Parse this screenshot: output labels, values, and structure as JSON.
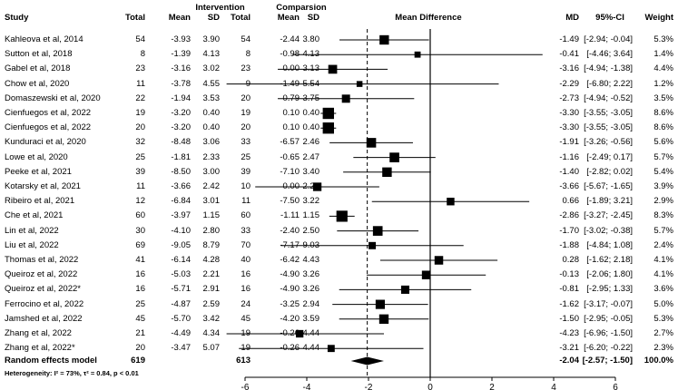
{
  "headers": {
    "study": "Study",
    "group1": "Intervention",
    "group2": "Comparsion",
    "total1": "Total",
    "mean1": "Mean",
    "sd1": "SD",
    "total2": "Total",
    "mean2": "Mean",
    "sd2": "SD",
    "plot": "Mean Difference",
    "md": "MD",
    "ci": "95%-CI",
    "weight": "Weight"
  },
  "studies": [
    {
      "study": "Kahleova et al, 2014",
      "n1": "54",
      "mean1": "-3.93",
      "sd1": "3.90",
      "n2": "54",
      "mean2": "-2.44",
      "sd2": "3.80",
      "md": "-1.49",
      "ci": "[-2.94; -0.04]",
      "weight": "5.3%"
    },
    {
      "study": "Sutton et al, 2018",
      "n1": "8",
      "mean1": "-1.39",
      "sd1": "4.13",
      "n2": "8",
      "mean2": "-0.98",
      "sd2": "4.13",
      "md": "-0.41",
      "ci": "[-4.46; 3.64]",
      "weight": "1.4%"
    },
    {
      "study": "Gabel et al, 2018",
      "n1": "23",
      "mean1": "-3.16",
      "sd1": "3.02",
      "n2": "23",
      "mean2": "0.00",
      "sd2": "3.13",
      "md": "-3.16",
      "ci": "[-4.94; -1.38]",
      "weight": "4.4%"
    },
    {
      "study": "Chow et al, 2020",
      "n1": "11",
      "mean1": "-3.78",
      "sd1": "4.55",
      "n2": "9",
      "mean2": "-1.49",
      "sd2": "5.54",
      "md": "-2.29",
      "ci": "[-6.80; 2.22]",
      "weight": "1.2%"
    },
    {
      "study": "Domaszewski et al, 2020",
      "n1": "22",
      "mean1": "-1.94",
      "sd1": "3.53",
      "n2": "20",
      "mean2": "0.79",
      "sd2": "3.75",
      "md": "-2.73",
      "ci": "[-4.94; -0.52]",
      "weight": "3.5%"
    },
    {
      "study": "Cienfuegos et al, 2022",
      "n1": "19",
      "mean1": "-3.20",
      "sd1": "0.40",
      "n2": "19",
      "mean2": "0.10",
      "sd2": "0.40",
      "md": "-3.30",
      "ci": "[-3.55; -3.05]",
      "weight": "8.6%"
    },
    {
      "study": "Cienfuegos et al, 2022",
      "n1": "20",
      "mean1": "-3.20",
      "sd1": "0.40",
      "n2": "20",
      "mean2": "0.10",
      "sd2": "0.40",
      "md": "-3.30",
      "ci": "[-3.55; -3.05]",
      "weight": "8.6%"
    },
    {
      "study": "Kunduraci et al, 2020",
      "n1": "32",
      "mean1": "-8.48",
      "sd1": "3.06",
      "n2": "33",
      "mean2": "-6.57",
      "sd2": "2.46",
      "md": "-1.91",
      "ci": "[-3.26; -0.56]",
      "weight": "5.6%"
    },
    {
      "study": "Lowe et al, 2020",
      "n1": "25",
      "mean1": "-1.81",
      "sd1": "2.33",
      "n2": "25",
      "mean2": "-0.65",
      "sd2": "2.47",
      "md": "-1.16",
      "ci": "[-2.49; 0.17]",
      "weight": "5.7%"
    },
    {
      "study": "Peeke et al, 2021",
      "n1": "39",
      "mean1": "-8.50",
      "sd1": "3.00",
      "n2": "39",
      "mean2": "-7.10",
      "sd2": "3.40",
      "md": "-1.40",
      "ci": "[-2.82; 0.02]",
      "weight": "5.4%"
    },
    {
      "study": "Kotarsky et al, 2021",
      "n1": "11",
      "mean1": "-3.66",
      "sd1": "2.42",
      "n2": "10",
      "mean2": "0.00",
      "sd2": "2.29",
      "md": "-3.66",
      "ci": "[-5.67; -1.65]",
      "weight": "3.9%"
    },
    {
      "study": "Ribeiro et al, 2021",
      "n1": "12",
      "mean1": "-6.84",
      "sd1": "3.01",
      "n2": "11",
      "mean2": "-7.50",
      "sd2": "3.22",
      "md": "0.66",
      "ci": "[-1.89; 3.21]",
      "weight": "2.9%"
    },
    {
      "study": "Che et al, 2021",
      "n1": "60",
      "mean1": "-3.97",
      "sd1": "1.15",
      "n2": "60",
      "mean2": "-1.11",
      "sd2": "1.15",
      "md": "-2.86",
      "ci": "[-3.27; -2.45]",
      "weight": "8.3%"
    },
    {
      "study": "Lin et al, 2022",
      "n1": "30",
      "mean1": "-4.10",
      "sd1": "2.80",
      "n2": "33",
      "mean2": "-2.40",
      "sd2": "2.50",
      "md": "-1.70",
      "ci": "[-3.02; -0.38]",
      "weight": "5.7%"
    },
    {
      "study": "Liu et al, 2022",
      "n1": "69",
      "mean1": "-9.05",
      "sd1": "8.79",
      "n2": "70",
      "mean2": "-7.17",
      "sd2": "9.03",
      "md": "-1.88",
      "ci": "[-4.84; 1.08]",
      "weight": "2.4%"
    },
    {
      "study": "Thomas et al, 2022",
      "n1": "41",
      "mean1": "-6.14",
      "sd1": "4.28",
      "n2": "40",
      "mean2": "-6.42",
      "sd2": "4.43",
      "md": "0.28",
      "ci": "[-1.62; 2.18]",
      "weight": "4.1%"
    },
    {
      "study": "Queiroz et al, 2022",
      "n1": "16",
      "mean1": "-5.03",
      "sd1": "2.21",
      "n2": "16",
      "mean2": "-4.90",
      "sd2": "3.26",
      "md": "-0.13",
      "ci": "[-2.06; 1.80]",
      "weight": "4.1%"
    },
    {
      "study": "Queiroz et al, 2022*",
      "n1": "16",
      "mean1": "-5.71",
      "sd1": "2.91",
      "n2": "16",
      "mean2": "-4.90",
      "sd2": "3.26",
      "md": "-0.81",
      "ci": "[-2.95; 1.33]",
      "weight": "3.6%"
    },
    {
      "study": "Ferrocino et al, 2022",
      "n1": "25",
      "mean1": "-4.87",
      "sd1": "2.59",
      "n2": "24",
      "mean2": "-3.25",
      "sd2": "2.94",
      "md": "-1.62",
      "ci": "[-3.17; -0.07]",
      "weight": "5.0%"
    },
    {
      "study": "Jamshed et al, 2022",
      "n1": "45",
      "mean1": "-5.70",
      "sd1": "3.42",
      "n2": "45",
      "mean2": "-4.20",
      "sd2": "3.59",
      "md": "-1.50",
      "ci": "[-2.95; -0.05]",
      "weight": "5.3%"
    },
    {
      "study": "Zhang et al, 2022",
      "n1": "21",
      "mean1": "-4.49",
      "sd1": "4.34",
      "n2": "19",
      "mean2": "-0.26",
      "sd2": "4.44",
      "md": "-4.23",
      "ci": "[-6.96; -1.50]",
      "weight": "2.7%"
    },
    {
      "study": "Zhang et al, 2022*",
      "n1": "20",
      "mean1": "-3.47",
      "sd1": "5.07",
      "n2": "19",
      "mean2": "-0.26",
      "sd2": "4.44",
      "md": "-3.21",
      "ci": "[-6.20; -0.22]",
      "weight": "2.3%"
    }
  ],
  "summary": {
    "label": "Random effects model",
    "n1": "619",
    "n2": "613",
    "md": "-2.04",
    "ci": "[-2.57; -1.50]",
    "weight": "100.0%"
  },
  "heterogeneity": "Heterogeneity: I² = 73%, τ² = 0.84, p < 0.01",
  "chart_data": {
    "type": "forest",
    "title": "Mean Difference",
    "x_ticks": [
      -6,
      -4,
      -2,
      0,
      2,
      4,
      6
    ],
    "xlim": [
      -6.6,
      6.6
    ],
    "null_line": 0,
    "summary_line": -2.04,
    "points": [
      {
        "md": -1.49,
        "lo": -2.94,
        "hi": -0.04,
        "w": 5.3
      },
      {
        "md": -0.41,
        "lo": -4.46,
        "hi": 3.64,
        "w": 1.4
      },
      {
        "md": -3.16,
        "lo": -4.94,
        "hi": -1.38,
        "w": 4.4
      },
      {
        "md": -2.29,
        "lo": -6.8,
        "hi": 2.22,
        "w": 1.2
      },
      {
        "md": -2.73,
        "lo": -4.94,
        "hi": -0.52,
        "w": 3.5
      },
      {
        "md": -3.3,
        "lo": -3.55,
        "hi": -3.05,
        "w": 8.6
      },
      {
        "md": -3.3,
        "lo": -3.55,
        "hi": -3.05,
        "w": 8.6
      },
      {
        "md": -1.91,
        "lo": -3.26,
        "hi": -0.56,
        "w": 5.6
      },
      {
        "md": -1.16,
        "lo": -2.49,
        "hi": 0.17,
        "w": 5.7
      },
      {
        "md": -1.4,
        "lo": -2.82,
        "hi": 0.02,
        "w": 5.4
      },
      {
        "md": -3.66,
        "lo": -5.67,
        "hi": -1.65,
        "w": 3.9
      },
      {
        "md": 0.66,
        "lo": -1.89,
        "hi": 3.21,
        "w": 2.9
      },
      {
        "md": -2.86,
        "lo": -3.27,
        "hi": -2.45,
        "w": 8.3
      },
      {
        "md": -1.7,
        "lo": -3.02,
        "hi": -0.38,
        "w": 5.7
      },
      {
        "md": -1.88,
        "lo": -4.84,
        "hi": 1.08,
        "w": 2.4
      },
      {
        "md": 0.28,
        "lo": -1.62,
        "hi": 2.18,
        "w": 4.1
      },
      {
        "md": -0.13,
        "lo": -2.06,
        "hi": 1.8,
        "w": 4.1
      },
      {
        "md": -0.81,
        "lo": -2.95,
        "hi": 1.33,
        "w": 3.6
      },
      {
        "md": -1.62,
        "lo": -3.17,
        "hi": -0.07,
        "w": 5.0
      },
      {
        "md": -1.5,
        "lo": -2.95,
        "hi": -0.05,
        "w": 5.3
      },
      {
        "md": -4.23,
        "lo": -6.96,
        "hi": -1.5,
        "w": 2.7
      },
      {
        "md": -3.21,
        "lo": -6.2,
        "hi": -0.22,
        "w": 2.3
      }
    ],
    "pooled": {
      "md": -2.04,
      "lo": -2.57,
      "hi": -1.5
    }
  }
}
